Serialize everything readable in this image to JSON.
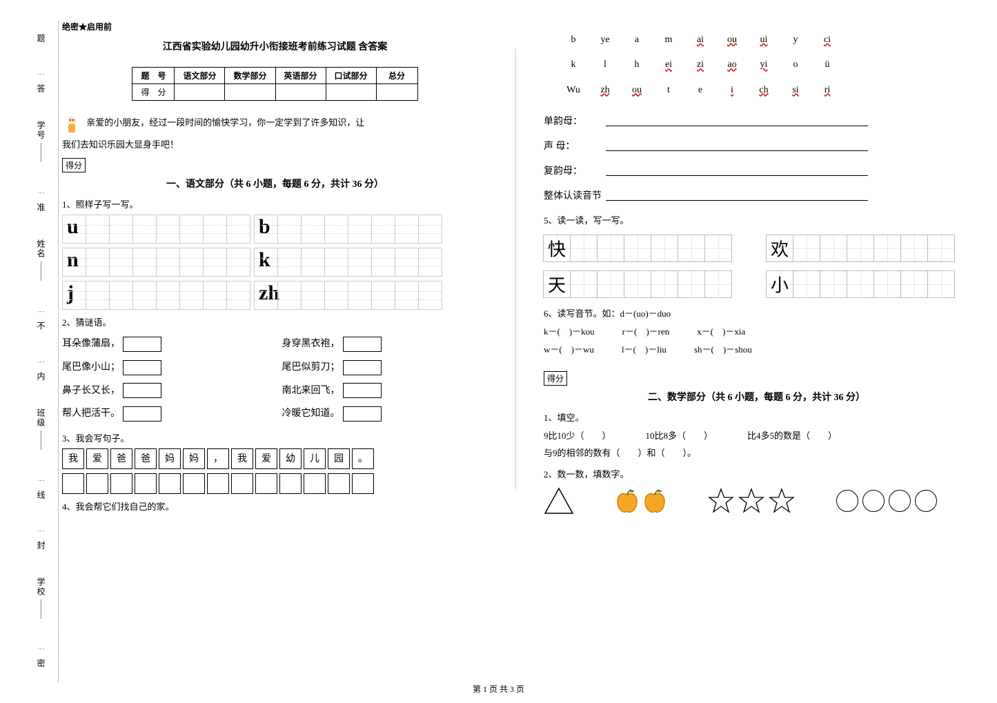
{
  "binding": {
    "top": "题",
    "f1": "学号",
    "m1": "答",
    "f2": "姓名",
    "m2": "准",
    "f3": "班级",
    "m3": "不",
    "f4": "学校",
    "m4": "内",
    "m5": "线",
    "m6": "封",
    "m7": "密"
  },
  "header": {
    "secret": "绝密★启用前",
    "title": "江西省实验幼儿园幼升小衔接班考前练习试题 含答案"
  },
  "score_table": {
    "headers": [
      "题　号",
      "语文部分",
      "数学部分",
      "英语部分",
      "口试部分",
      "总分"
    ],
    "row2": "得　分"
  },
  "intro": {
    "line1": "亲爱的小朋友，经过一段时间的愉快学习，你一定学到了许多知识，让",
    "line2": "我们去知识乐园大显身手吧！",
    "scorebox": "得分"
  },
  "chinese": {
    "section_title": "一、语文部分（共 6 小题，每题 6 分，共计 36 分）",
    "q1": "1、照样子写一写。",
    "letters": [
      "u",
      "b",
      "n",
      "k",
      "j",
      "zh"
    ],
    "q2": "2、猜谜语。",
    "riddle_left": [
      "耳朵像蒲扇，",
      "尾巴像小山；",
      "鼻子长又长，",
      "帮人把活干。"
    ],
    "riddle_right": [
      "身穿黑衣袍，",
      "尾巴似剪刀；",
      "南北来回飞，",
      "冷暖它知道。"
    ],
    "q3": "3、我会写句子。",
    "sentence1": [
      "我",
      "爱",
      "爸",
      "爸",
      "妈",
      "妈",
      "，",
      "我",
      "爱",
      "幼",
      "儿",
      "园",
      "。"
    ],
    "q4": "4、我会帮它们找自己的家。"
  },
  "pinyin_bank": {
    "row1": [
      "b",
      "ye",
      "a",
      "m",
      "ai",
      "ou",
      "ui",
      "y",
      "ci"
    ],
    "row1_u": [
      0,
      0,
      0,
      0,
      1,
      1,
      1,
      0,
      1
    ],
    "row2": [
      "k",
      "l",
      "h",
      "ei",
      "zi",
      "ao",
      "yi",
      "o",
      "ü"
    ],
    "row2_u": [
      0,
      0,
      0,
      1,
      1,
      1,
      1,
      0,
      0
    ],
    "row3": [
      "Wu",
      "zh",
      "ou",
      "t",
      "e",
      "i",
      "ch",
      "si",
      "ri"
    ],
    "row3_u": [
      0,
      1,
      1,
      0,
      0,
      1,
      1,
      1,
      1
    ]
  },
  "fill": {
    "l1": "单韵母：",
    "l2": "声 母：",
    "l3": "复韵母：",
    "l4": "整体认读音节"
  },
  "q5": {
    "label": "5、读一读，写一写。",
    "chars": [
      "快",
      "欢",
      "天",
      "小"
    ]
  },
  "q6": {
    "label": "6、读写音节。如：d－(uo)－duo",
    "items": [
      [
        "k－(　)－kou",
        "r－(　)－ren",
        "x－(　)－xia"
      ],
      [
        "w－(　)－wu",
        "l－(　)－liu",
        "sh－(　)－shou"
      ]
    ]
  },
  "math": {
    "scorebox": "得分",
    "section_title": "二、数学部分（共 6 小题，每题 6 分，共计 36 分）",
    "q1": "1、填空。",
    "fill_items": {
      "a": "9比10少（　　）",
      "b": "10比8多（　　）",
      "c": "比4多5的数是（　　）",
      "d": "与9的相邻的数有（　　）和（　　）。"
    },
    "q2": "2、数一数，填数字。",
    "shapes": {
      "triangle": 1,
      "apple": 2,
      "star": 3,
      "circle": 4
    }
  },
  "colors": {
    "apple_fill": "#f5a623",
    "apple_stroke": "#c77b00",
    "star_stroke": "#000000"
  },
  "footer": "第 1 页 共 3 页"
}
